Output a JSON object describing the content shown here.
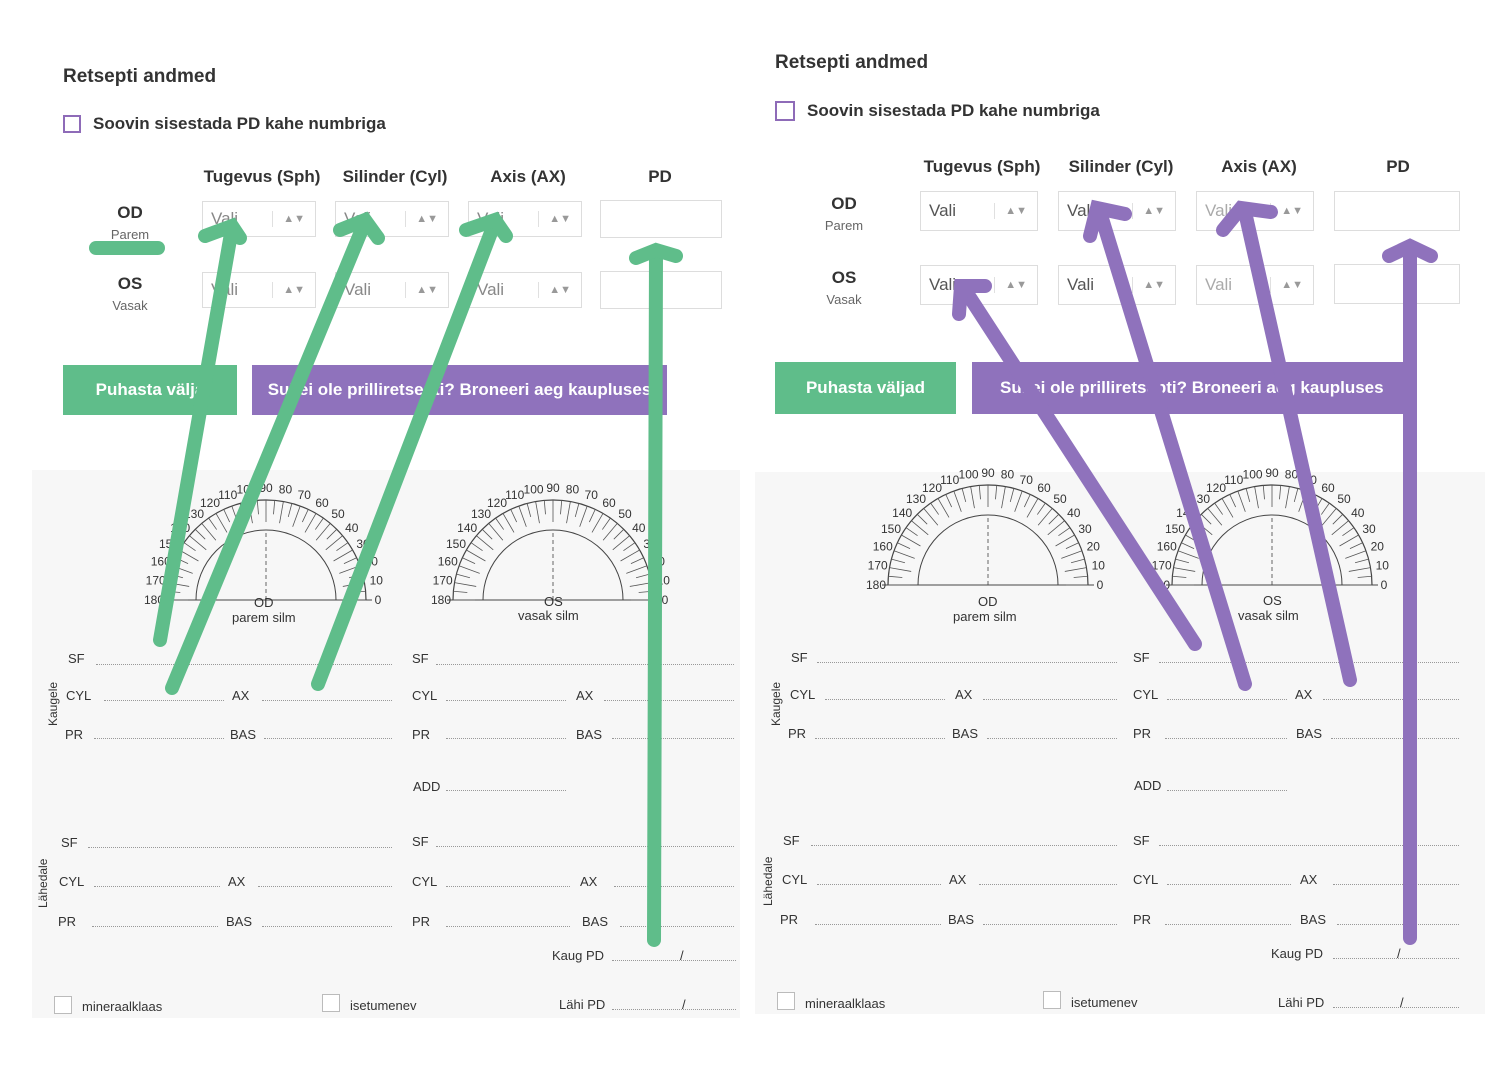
{
  "form": {
    "title": "Retsepti andmed",
    "checkbox_label": "Soovin sisestada PD kahe numbriga",
    "columns": [
      "Tugevus (Sph)",
      "Silinder (Cyl)",
      "Axis (AX)",
      "PD"
    ],
    "od": {
      "code": "OD",
      "sub": "Parem"
    },
    "os": {
      "code": "OS",
      "sub": "Vasak"
    },
    "select_placeholder": "Vali",
    "btn_clear_left": "Puhasta välja",
    "btn_clear_right": "Puhasta väljad",
    "btn_book_left": "Sul ei ole prilliretsepti? Broneeri aeg kaupluses",
    "btn_book_right": "Sul ei ole prilliretsepti? Broneeri aeg kaupluses"
  },
  "sheet": {
    "od_label": "OD",
    "od_sub": "parem silm",
    "os_label": "OS",
    "os_sub": "vasak silm",
    "kaugele": "Kaugele",
    "lahedale": "Lähedale",
    "sf": "SF",
    "cyl": "CYL",
    "ax": "AX",
    "pr": "PR",
    "bas": "BAS",
    "add": "ADD",
    "kaug_pd": "Kaug PD",
    "lahi_pd": "Lähi PD",
    "slash": "/",
    "mineraalklaas": "mineraalklaas",
    "isetumenev": "isetumenev",
    "degrees": [
      "0",
      "10",
      "20",
      "30",
      "40",
      "50",
      "60",
      "70",
      "80",
      "90",
      "100",
      "110",
      "120",
      "130",
      "140",
      "150",
      "160",
      "170",
      "180"
    ]
  },
  "colors": {
    "green": "#5fbd8a",
    "purple": "#8f72bc"
  }
}
